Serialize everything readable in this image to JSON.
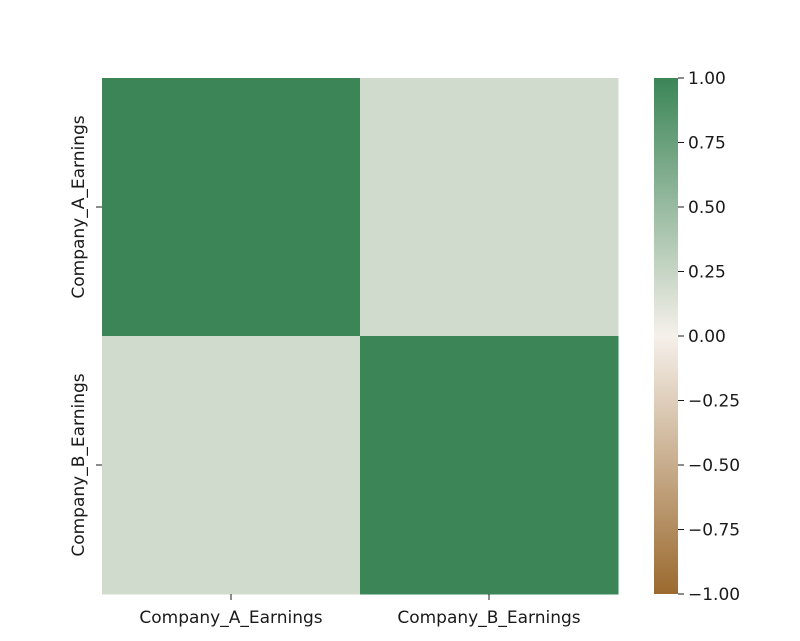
{
  "chart_data": {
    "type": "heatmap",
    "row_labels": [
      "Company_A_Earnings",
      "Company_B_Earnings"
    ],
    "col_labels": [
      "Company_A_Earnings",
      "Company_B_Earnings"
    ],
    "values": [
      [
        1.0,
        0.2
      ],
      [
        0.2,
        1.0
      ]
    ],
    "colorbar": {
      "vmin": -1.0,
      "vmax": 1.0,
      "ticks": [
        1.0,
        0.75,
        0.5,
        0.25,
        0.0,
        -0.25,
        -0.5,
        -0.75,
        -1.0
      ],
      "tick_labels": [
        "1.00",
        "0.75",
        "0.50",
        "0.25",
        "0.00",
        "−0.25",
        "−0.50",
        "−0.75",
        "−1.00"
      ],
      "colormap": [
        "#9b6a2f",
        "#f5f0ea",
        "#3b8557"
      ]
    },
    "grid": false
  }
}
